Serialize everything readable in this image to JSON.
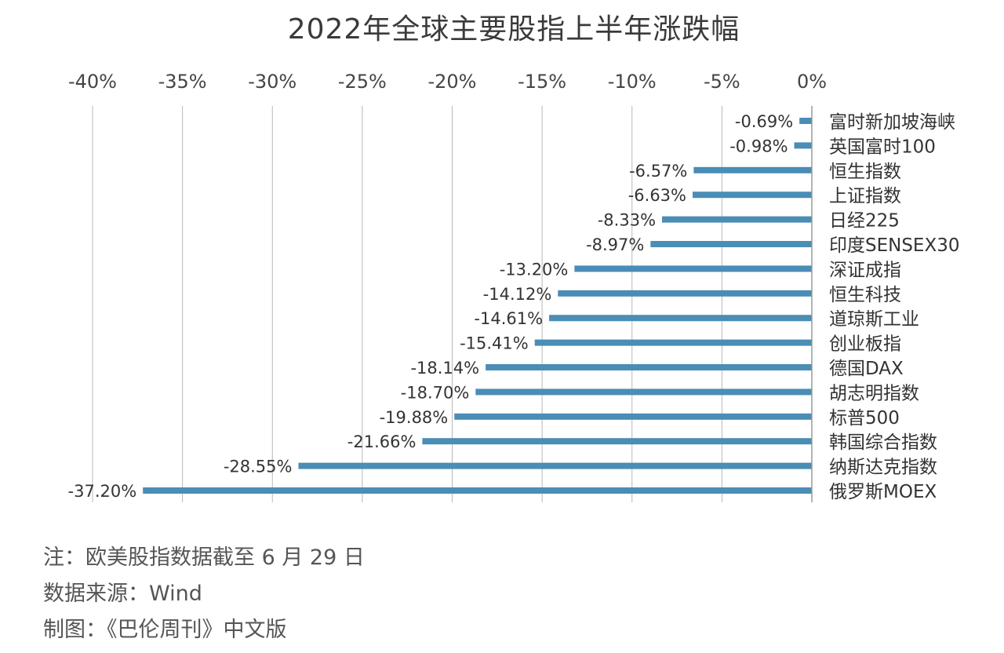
{
  "chart_data": {
    "type": "bar",
    "orientation": "horizontal",
    "title": "2022年全球主要股指上半年涨跌幅",
    "xlim": [
      -40,
      0
    ],
    "xticks": [
      -40,
      -35,
      -30,
      -25,
      -20,
      -15,
      -10,
      -5,
      0
    ],
    "xtick_labels": [
      "-40%",
      "-35%",
      "-30%",
      "-25%",
      "-20%",
      "-15%",
      "-10%",
      "-5%",
      "0%"
    ],
    "grid": true,
    "categories": [
      "富时新加坡海峡",
      "英国富时100",
      "恒生指数",
      "上证指数",
      "日经225",
      "印度SENSEX30",
      "深证成指",
      "恒生科技",
      "道琼斯工业",
      "创业板指",
      "德国DAX",
      "胡志明指数",
      "标普500",
      "韩国综合指数",
      "纳斯达克指数",
      "俄罗斯MOEX"
    ],
    "values": [
      -0.69,
      -0.98,
      -6.57,
      -6.63,
      -8.33,
      -8.97,
      -13.2,
      -14.12,
      -14.61,
      -15.41,
      -18.14,
      -18.7,
      -19.88,
      -21.66,
      -28.55,
      -37.2
    ],
    "data_labels": [
      "-0.69%",
      "-0.98%",
      "-6.57%",
      "-6.63%",
      "-8.33%",
      "-8.97%",
      "-13.20%",
      "-14.12%",
      "-14.61%",
      "-15.41%",
      "-18.14%",
      "-18.70%",
      "-19.88%",
      "-21.66%",
      "-28.55%",
      "-37.20%"
    ],
    "bar_color": "#4a8db5",
    "grid_color": "#b8b8b8"
  },
  "notes": {
    "note1": "注：欧美股指数据截至 6 月 29 日",
    "note2": "数据来源：Wind",
    "note3": "制图：《巴伦周刊》中文版"
  }
}
